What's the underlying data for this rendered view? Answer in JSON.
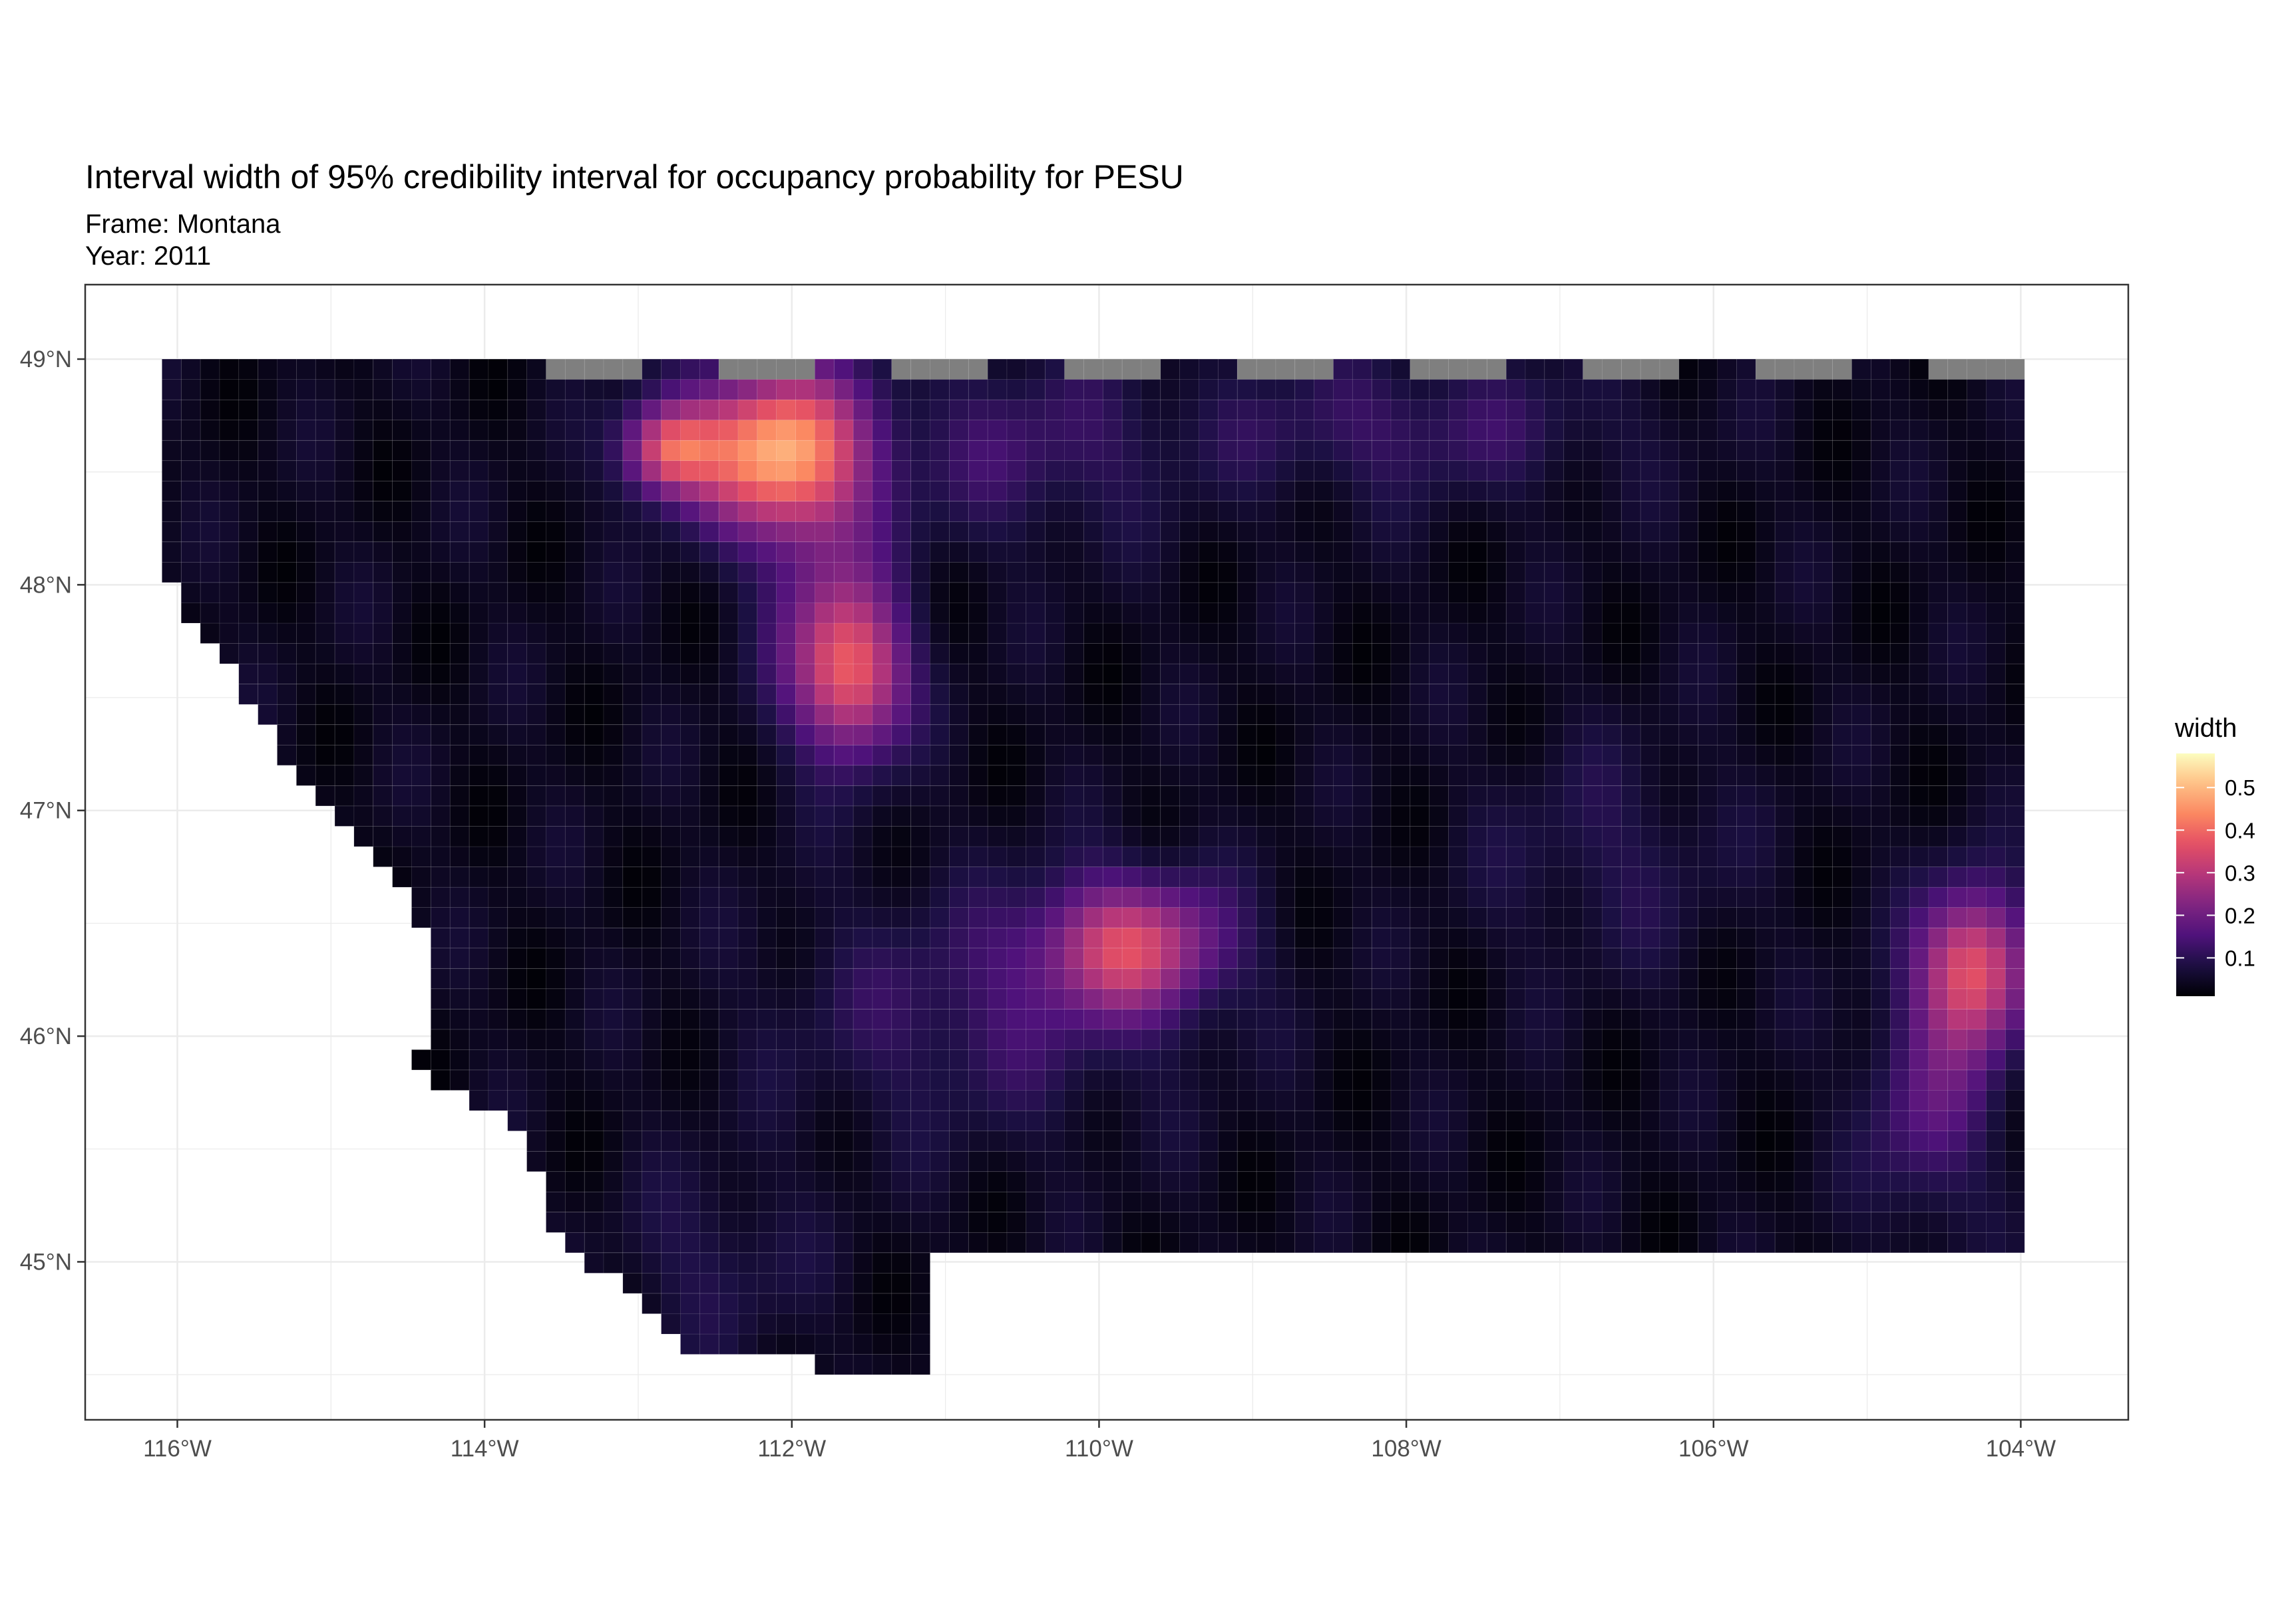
{
  "title": "Interval width of 95% credibility interval for occupancy probability for PESU",
  "subtitle_lines": [
    "Frame: Montana",
    "Year: 2011"
  ],
  "chart_data": {
    "type": "heatmap",
    "title": "Interval width of 95% credibility interval for occupancy probability for PESU",
    "subtitle": [
      "Frame: Montana",
      "Year: 2011"
    ],
    "xlabel": "",
    "ylabel": "",
    "x_ticks": [
      "116°W",
      "114°W",
      "112°W",
      "110°W",
      "108°W",
      "106°W",
      "104°W"
    ],
    "x_tick_values": [
      -116,
      -114,
      -112,
      -110,
      -108,
      -106,
      -104
    ],
    "y_ticks": [
      "49°N",
      "48°N",
      "47°N",
      "46°N",
      "45°N"
    ],
    "y_tick_values": [
      49,
      48,
      47,
      46,
      45
    ],
    "xlim": [
      -116.6,
      -103.3
    ],
    "ylim": [
      44.3,
      49.33
    ],
    "grid": true,
    "legend": {
      "title": "width",
      "ticks": [
        "0.1",
        "0.2",
        "0.3",
        "0.4",
        "0.5"
      ],
      "tick_values": [
        0.1,
        0.2,
        0.3,
        0.4,
        0.5
      ],
      "range": [
        0.01,
        0.58
      ],
      "placement": "right"
    },
    "na_color": "#7f7f7f",
    "colormap": "magma",
    "hotspots": [
      {
        "lon": -112.1,
        "lat": 48.6,
        "width": 0.42
      },
      {
        "lon": -112.8,
        "lat": 48.6,
        "width": 0.36
      },
      {
        "lon": -111.6,
        "lat": 47.6,
        "width": 0.36
      },
      {
        "lon": -109.8,
        "lat": 46.4,
        "width": 0.35
      },
      {
        "lon": -104.3,
        "lat": 46.3,
        "width": 0.38
      }
    ]
  }
}
